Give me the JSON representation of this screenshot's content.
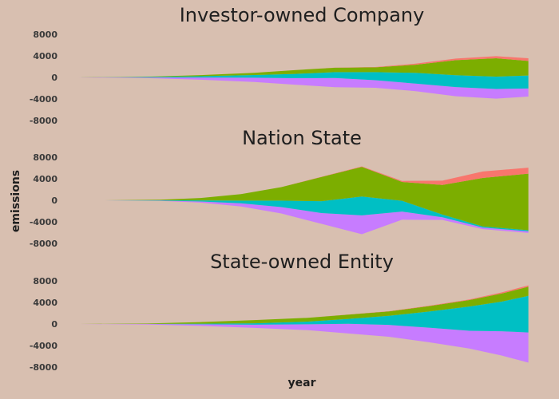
{
  "colors": {
    "background": "#d8bfb0",
    "series": [
      "#c77cff",
      "#00bfc4",
      "#7cae00",
      "#f8766d"
    ]
  },
  "chart_data": {
    "type": "area",
    "subtype": "streamgraph",
    "xlabel": "year",
    "ylabel": "emissions",
    "yticks": [
      8000,
      4000,
      0,
      -4000,
      -8000
    ],
    "ylim": [
      -9000,
      9000
    ],
    "xlim": [
      1855,
      2023
    ],
    "grid": false,
    "legend": "none",
    "panels": [
      {
        "title": "Investor-owned Company",
        "x": [
          1854,
          1880,
          1900,
          1920,
          1935,
          1950,
          1965,
          1980,
          1995,
          2010,
          2022
        ],
        "series": [
          {
            "values": [
              0,
              120,
              400,
              800,
              1200,
              1700,
              1400,
              1400,
              1700,
              1800,
              1500
            ]
          },
          {
            "values": [
              0,
              80,
              250,
              500,
              800,
              1100,
              1500,
              2000,
              2200,
              2300,
              2400
            ]
          },
          {
            "values": [
              0,
              60,
              200,
              400,
              700,
              800,
              900,
              1500,
              2800,
              3400,
              2700
            ]
          },
          {
            "values": [
              0,
              0,
              0,
              0,
              0,
              20,
              50,
              200,
              300,
              400,
              500
            ]
          }
        ]
      },
      {
        "title": "Nation State",
        "x": [
          1864,
          1885,
          1900,
          1915,
          1930,
          1945,
          1960,
          1975,
          1990,
          2005,
          2022
        ],
        "series": [
          {
            "values": [
              0,
              60,
              200,
              600,
              1200,
              2000,
              3500,
              1500,
              500,
              300,
              300
            ]
          },
          {
            "values": [
              0,
              60,
              200,
              500,
              1200,
              2200,
              3500,
              2000,
              500,
              200,
              200
            ]
          },
          {
            "values": [
              0,
              120,
              450,
              1200,
              2500,
              4500,
              5500,
              3500,
              5500,
              9000,
              10500
            ]
          },
          {
            "values": [
              0,
              0,
              0,
              0,
              0,
              50,
              100,
              200,
              800,
              1200,
              1100
            ]
          }
        ]
      },
      {
        "title": "State-owned Entity",
        "x": [
          1855,
          1880,
          1900,
          1920,
          1940,
          1955,
          1970,
          1985,
          2000,
          2012,
          2022
        ],
        "series": [
          {
            "values": [
              0,
              80,
              300,
              600,
              1100,
              1800,
              2200,
              2700,
              3300,
              4500,
              5600
            ]
          },
          {
            "values": [
              0,
              30,
              120,
              250,
              500,
              900,
              1700,
              3000,
              4500,
              5500,
              6800
            ]
          },
          {
            "values": [
              0,
              60,
              300,
              600,
              700,
              800,
              800,
              1000,
              1200,
              1500,
              1700
            ]
          },
          {
            "values": [
              0,
              0,
              0,
              0,
              0,
              20,
              50,
              80,
              120,
              200,
              250
            ]
          }
        ]
      }
    ]
  }
}
